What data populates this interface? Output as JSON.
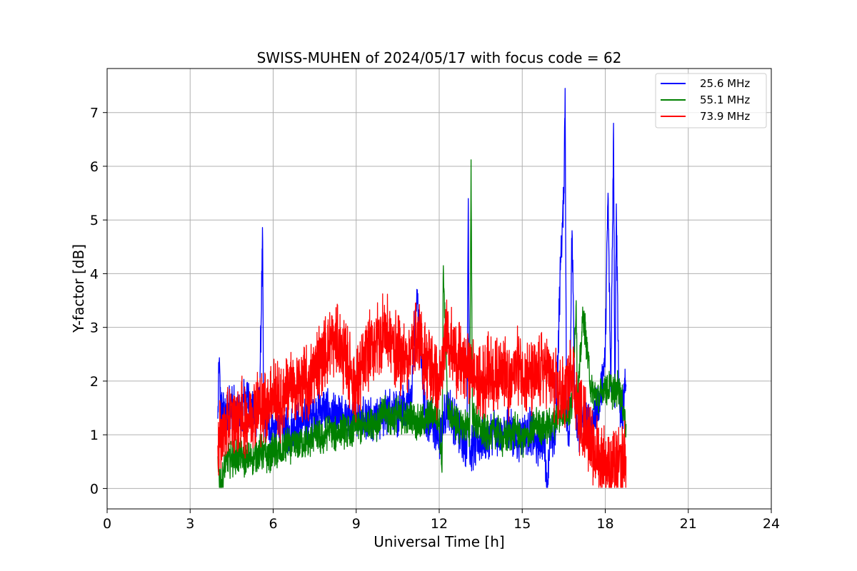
{
  "chart_data": {
    "type": "line",
    "title": "SWISS-MUHEN of 2024/05/17 with focus code = 62",
    "xlabel": "Universal Time [h]",
    "ylabel": "Y-factor [dB]",
    "xlim": [
      0,
      24
    ],
    "ylim": [
      -0.38,
      7.82
    ],
    "xticks": [
      0,
      3,
      6,
      9,
      12,
      15,
      18,
      21,
      24
    ],
    "yticks": [
      0,
      1,
      2,
      3,
      4,
      5,
      6,
      7
    ],
    "grid": true,
    "legend_position": "top-right",
    "series": [
      {
        "name": "25.6 MHz",
        "color": "#0000ff",
        "x": [
          4.0,
          4.05,
          4.1,
          4.3,
          4.5,
          4.8,
          5.0,
          5.3,
          5.5,
          5.62,
          5.65,
          5.8,
          6.0,
          6.3,
          6.5,
          6.8,
          7.0,
          7.3,
          7.5,
          7.8,
          8.0,
          8.3,
          8.5,
          8.8,
          9.0,
          9.3,
          9.5,
          9.8,
          10.0,
          10.3,
          10.5,
          10.8,
          11.0,
          11.2,
          11.5,
          11.8,
          12.0,
          12.3,
          12.5,
          12.8,
          13.0,
          13.05,
          13.1,
          13.5,
          13.8,
          14.0,
          14.3,
          14.5,
          14.8,
          15.0,
          15.3,
          15.5,
          15.8,
          15.9,
          16.0,
          16.2,
          16.4,
          16.5,
          16.55,
          16.6,
          16.7,
          16.8,
          16.9,
          17.0,
          17.2,
          17.5,
          17.8,
          18.0,
          18.1,
          18.2,
          18.3,
          18.35,
          18.4,
          18.5,
          18.6,
          18.75
        ],
        "values": [
          1.3,
          2.35,
          1.5,
          1.4,
          1.6,
          1.3,
          1.8,
          1.3,
          1.5,
          4.6,
          1.5,
          1.2,
          1.1,
          1.2,
          1.05,
          1.15,
          1.2,
          1.3,
          1.4,
          1.5,
          1.4,
          1.3,
          1.35,
          1.3,
          1.4,
          1.3,
          1.35,
          1.3,
          1.4,
          1.5,
          1.35,
          1.6,
          1.7,
          3.6,
          1.3,
          1.2,
          0.9,
          1.6,
          1.3,
          1.0,
          0.8,
          5.4,
          0.7,
          0.9,
          1.0,
          1.1,
          0.9,
          1.2,
          0.9,
          1.0,
          1.1,
          0.8,
          1.0,
          0.0,
          0.9,
          1.0,
          4.4,
          5.3,
          7.45,
          1.2,
          1.0,
          4.8,
          1.5,
          1.0,
          1.3,
          1.2,
          1.6,
          2.5,
          5.5,
          1.8,
          6.8,
          1.5,
          5.3,
          1.6,
          1.4,
          1.9
        ]
      },
      {
        "name": "55.1 MHz",
        "color": "#008000",
        "x": [
          4.0,
          4.1,
          4.3,
          4.5,
          4.8,
          5.0,
          5.3,
          5.5,
          5.8,
          6.0,
          6.3,
          6.5,
          6.8,
          7.0,
          7.3,
          7.5,
          7.8,
          8.0,
          8.3,
          8.5,
          8.8,
          9.0,
          9.3,
          9.5,
          9.8,
          10.0,
          10.3,
          10.5,
          10.8,
          11.0,
          11.3,
          11.5,
          11.8,
          12.0,
          12.1,
          12.15,
          12.3,
          12.5,
          12.8,
          13.0,
          13.1,
          13.15,
          13.2,
          13.5,
          13.8,
          14.0,
          14.3,
          14.5,
          14.8,
          15.0,
          15.3,
          15.5,
          15.8,
          16.0,
          16.3,
          16.5,
          16.8,
          16.95,
          17.0,
          17.2,
          17.5,
          17.8,
          18.0,
          18.3,
          18.5,
          18.75
        ],
        "values": [
          0.6,
          0.0,
          0.5,
          0.55,
          0.6,
          0.5,
          0.6,
          0.7,
          0.6,
          0.7,
          0.65,
          0.8,
          0.8,
          0.9,
          0.85,
          1.0,
          0.9,
          1.1,
          1.0,
          1.1,
          1.0,
          1.2,
          1.1,
          1.3,
          1.2,
          1.4,
          1.3,
          1.4,
          1.3,
          1.3,
          1.2,
          1.3,
          1.4,
          1.3,
          0.3,
          4.15,
          1.5,
          1.3,
          1.1,
          1.2,
          1.0,
          6.12,
          1.3,
          1.1,
          1.0,
          1.1,
          0.9,
          1.0,
          1.1,
          0.9,
          1.0,
          1.2,
          1.1,
          1.2,
          1.3,
          1.4,
          1.5,
          3.5,
          1.6,
          3.3,
          1.8,
          1.7,
          1.9,
          1.8,
          1.9,
          1.2
        ]
      },
      {
        "name": "73.9 MHz",
        "color": "#ff0000",
        "x": [
          4.0,
          4.3,
          4.5,
          4.8,
          5.0,
          5.3,
          5.5,
          5.8,
          6.0,
          6.3,
          6.5,
          6.8,
          7.0,
          7.3,
          7.5,
          7.8,
          8.0,
          8.2,
          8.5,
          8.8,
          9.0,
          9.3,
          9.5,
          9.8,
          10.0,
          10.3,
          10.5,
          10.8,
          11.0,
          11.2,
          11.5,
          11.8,
          12.0,
          12.3,
          12.5,
          12.8,
          13.0,
          13.3,
          13.5,
          13.8,
          14.0,
          14.3,
          14.5,
          14.8,
          15.0,
          15.3,
          15.5,
          15.8,
          16.0,
          16.3,
          16.5,
          16.8,
          17.0,
          17.3,
          17.5,
          17.8,
          18.0,
          18.2,
          18.5,
          18.75
        ],
        "values": [
          0.8,
          1.2,
          1.3,
          1.4,
          1.3,
          1.5,
          1.5,
          1.6,
          1.8,
          1.5,
          2.0,
          1.7,
          2.0,
          1.9,
          2.3,
          2.5,
          2.6,
          2.8,
          2.5,
          2.2,
          1.9,
          2.3,
          2.6,
          2.8,
          3.0,
          2.7,
          2.5,
          2.4,
          2.6,
          2.8,
          2.4,
          2.2,
          1.8,
          3.0,
          2.5,
          2.3,
          2.4,
          2.1,
          1.9,
          2.2,
          2.0,
          2.4,
          1.8,
          2.3,
          2.2,
          2.0,
          2.0,
          2.3,
          2.1,
          1.8,
          1.7,
          2.3,
          1.4,
          1.2,
          0.8,
          0.6,
          0.5,
          0.3,
          0.4,
          0.6
        ]
      }
    ]
  }
}
